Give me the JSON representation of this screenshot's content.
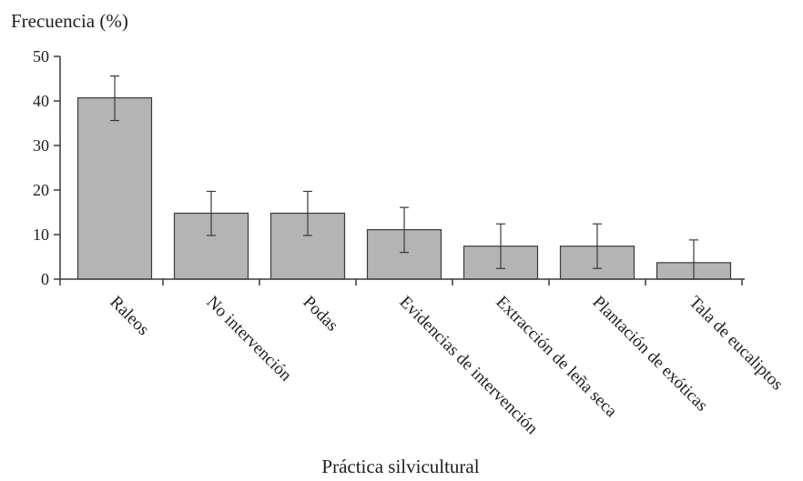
{
  "chart_data": {
    "type": "bar",
    "title": "",
    "ylabel": "Frecuencia (%)",
    "xlabel": "Práctica silvicultural",
    "ylim": [
      0,
      50
    ],
    "yticks": [
      0,
      10,
      20,
      30,
      40,
      50
    ],
    "grid": false,
    "legend": "none",
    "colors": {
      "bar_fill": "#b4b4b4",
      "bar_stroke": "#3a3a3a",
      "axis": "#3a3a3a",
      "error_bar": "#3a3a3a"
    },
    "categories": [
      "Raleos",
      "No intervención",
      "Podas",
      "Evidencias de intervención",
      "Extracción de leña seca",
      "Plantación de exóticas",
      "Tala de eucaliptos"
    ],
    "values": [
      40.7,
      14.8,
      14.8,
      11.1,
      7.4,
      7.4,
      3.7
    ],
    "error_low": [
      35.6,
      9.8,
      9.8,
      6.0,
      2.4,
      2.4,
      0.0
    ],
    "error_high": [
      45.6,
      19.7,
      19.7,
      16.1,
      12.4,
      12.4,
      8.8
    ]
  }
}
